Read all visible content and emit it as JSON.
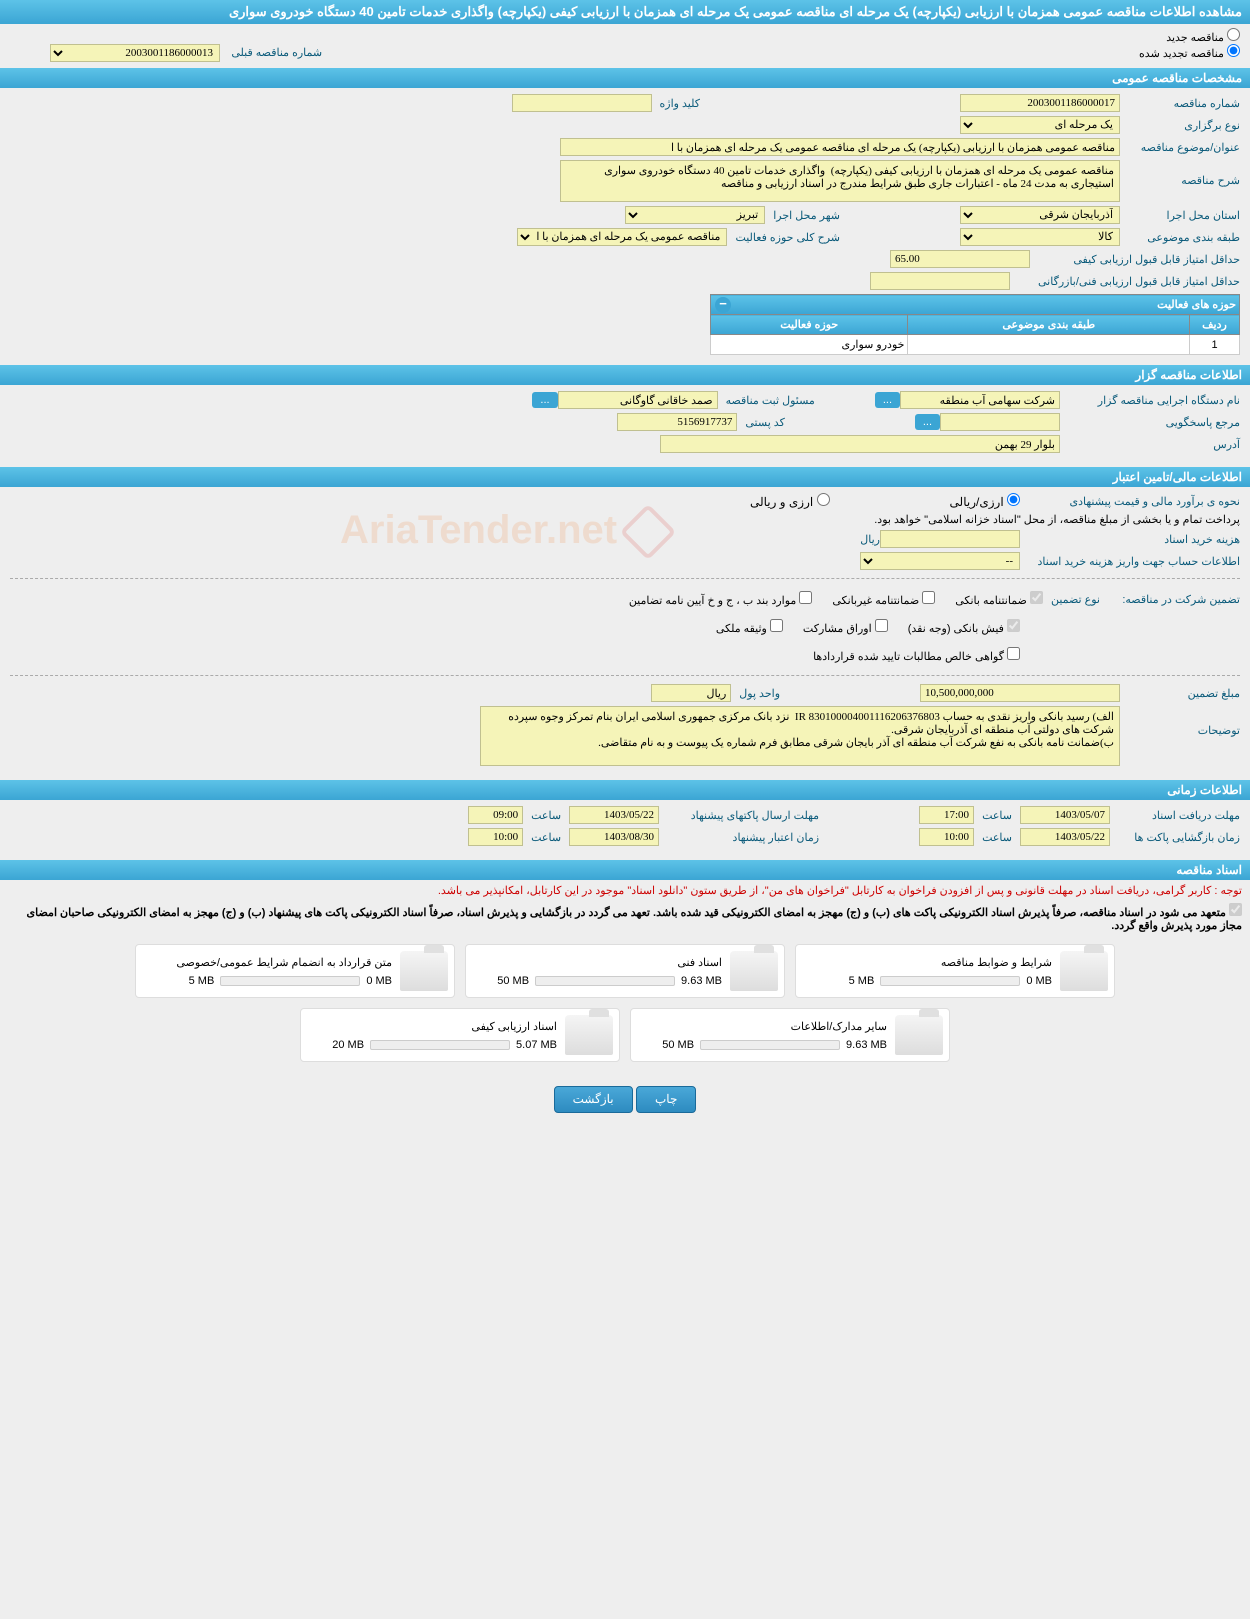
{
  "header": {
    "title": "مشاهده اطلاعات مناقصه عمومی همزمان با ارزیابی (یکپارچه) یک مرحله ای مناقصه عمومی یک مرحله ای همزمان با ارزیابی کیفی (یکپارچه) واگذاری خدمات تامین 40 دستگاه خودروی سواری"
  },
  "top_radio": {
    "new": "مناقصه جدید",
    "renew": "مناقصه تجدید شده",
    "prev_no_label": "شماره مناقصه قبلی",
    "prev_no": "2003001186000013"
  },
  "sections": {
    "general": "مشخصات مناقصه عمومی",
    "holder": "اطلاعات مناقصه گزار",
    "finance": "اطلاعات مالی/تامین اعتبار",
    "time": "اطلاعات زمانی",
    "docs": "اسناد مناقصه"
  },
  "general": {
    "tender_no_label": "شماره مناقصه",
    "tender_no": "2003001186000017",
    "keyword_label": "کلید واژه",
    "keyword": "",
    "type_label": "نوع برگزاری",
    "type": "یک مرحله ای",
    "title_label": "عنوان/موضوع مناقصه",
    "title": "مناقصه عمومی همزمان با ارزیابی (یکپارچه) یک مرحله ای مناقصه عمومی یک مرحله ای همزمان با ا",
    "desc_label": "شرح مناقصه",
    "desc": "مناقصه عمومی یک مرحله ای همزمان با ارزیابی کیفی (یکپارچه)  واگذاری خدمات تامین 40 دستگاه خودروی سواری استیجاری به مدت 24 ماه - اعتبارات جاری طبق شرایط مندرج در اسناد ارزیابی و مناقصه",
    "province_label": "استان محل اجرا",
    "province": "آذربایجان شرقی",
    "city_label": "شهر محل اجرا",
    "city": "تبریز",
    "subject_cat_label": "طبقه بندی موضوعی",
    "subject_cat": "کالا",
    "scope_desc_label": "شرح کلی حوزه فعالیت",
    "scope_desc": "مناقصه عمومی یک مرحله ای همزمان با ارزیابی",
    "min_qual_label": "حداقل امتیاز قابل قبول ارزیابی کیفی",
    "min_qual": "65.00",
    "min_tech_label": "حداقل امتیاز قابل قبول ارزیابی فنی/بازرگانی",
    "min_tech": ""
  },
  "activity_table": {
    "header": "حوزه های فعالیت",
    "col_row": "ردیف",
    "col_cat": "طبقه بندی موضوعی",
    "col_scope": "حوزه فعالیت",
    "rows": [
      {
        "n": "1",
        "cat": "",
        "scope": "خودرو سواری"
      }
    ]
  },
  "holder": {
    "org_label": "نام دستگاه اجرایی مناقصه گزار",
    "org": "شرکت سهامی آب منطقه",
    "resp_btn": "...",
    "reg_person_label": "مسئول ثبت مناقصه",
    "reg_person": "صمد خاقانی گاوگانی",
    "reg_btn": "...",
    "contact_label": "مرجع پاسخگویی",
    "contact": "",
    "contact_btn": "...",
    "postal_label": "کد پستی",
    "postal": "5156917737",
    "address_label": "آدرس",
    "address": "بلوار 29 بهمن"
  },
  "finance": {
    "est_method_label": "نحوه ی برآورد مالی و قیمت پیشنهادی",
    "opt_rial": "ارزی/ریالی",
    "opt_both": "ارزی و ریالی",
    "payment_note": "پرداخت تمام و یا بخشی از مبلغ مناقصه، از محل \"اسناد خزانه اسلامی\" خواهد بود.",
    "doc_cost_label": "هزینه خرید اسناد",
    "doc_cost": "",
    "doc_cost_unit": "ریال",
    "account_label": "اطلاعات حساب جهت واریز هزینه خرید اسناد",
    "account": "--",
    "guarantee_label": "تضمین شرکت در مناقصه:",
    "guarantee_type_label": "نوع تضمین",
    "chk_bank": "ضمانتنامه بانکی",
    "chk_nonbank": "ضمانتنامه غیربانکی",
    "chk_items": "موارد بند ب ، ج و خ آیین نامه تضامین",
    "chk_receipt": "فیش بانکی (وجه نقد)",
    "chk_bonds": "اوراق مشارکت",
    "chk_property": "وثیقه ملکی",
    "chk_net": "گواهی خالص مطالبات تایید شده قراردادها",
    "amount_label": "مبلغ تضمین",
    "amount": "10,500,000,000",
    "unit_label": "واحد پول",
    "unit": "ریال",
    "notes_label": "توضیحات",
    "notes": "الف) رسید بانکی واریز نقدی به حساب IR 830100004001116206376803  نزد بانک مرکزی جمهوری اسلامی ایران بنام تمرکز وجوه سپرده شرکت های دولتی آب منطقه ای آذربایجان شرقی.\nب)ضمانت نامه بانکی به نفع شرکت آب منطقه ای آذر بایجان شرقی مطابق فرم شماره یک پیوست و به نام متقاضی."
  },
  "time": {
    "receive_label": "مهلت دریافت اسناد",
    "receive_date": "1403/05/07",
    "receive_time_label": "ساعت",
    "receive_time": "17:00",
    "send_label": "مهلت ارسال پاکتهای پیشنهاد",
    "send_date": "1403/05/22",
    "send_time_label": "ساعت",
    "send_time": "09:00",
    "open_label": "زمان بازگشایی پاکت ها",
    "open_date": "1403/05/22",
    "open_time_label": "ساعت",
    "open_time": "10:00",
    "valid_label": "زمان اعتبار پیشنهاد",
    "valid_date": "1403/08/30",
    "valid_time_label": "ساعت",
    "valid_time": "10:00"
  },
  "docs": {
    "note1": "توجه : کاربر گرامی، دریافت اسناد در مهلت قانونی و پس از افزودن فراخوان به کارتابل \"فراخوان های من\"، از طریق ستون \"دانلود اسناد\" موجود در این کارتابل، امکانپذیر می باشد.",
    "note2": "متعهد می شود در اسناد مناقصه، صرفاً پذیرش اسناد الکترونیکی پاکت های (ب) و (ج) مهجز به امضای الکترونیکی قید شده باشد. تعهد می گردد در بازگشایی و پذیرش اسناد، صرفاً اسناد الکترونیکی پاکت های پیشنهاد (ب) و (ج) مهجز به امضای الکترونیکی صاحبان امضای مجاز مورد پذیرش واقع گردد.",
    "cards": [
      {
        "title": "شرایط و ضوابط مناقصه",
        "used": "0 MB",
        "total": "5 MB",
        "pct": 0
      },
      {
        "title": "اسناد فنی",
        "used": "9.63 MB",
        "total": "50 MB",
        "pct": 19
      },
      {
        "title": "متن قرارداد به انضمام شرایط عمومی/خصوصی",
        "used": "0 MB",
        "total": "5 MB",
        "pct": 0
      },
      {
        "title": "سایر مدارک/اطلاعات",
        "used": "9.63 MB",
        "total": "50 MB",
        "pct": 19
      },
      {
        "title": "اسناد ارزیابی کیفی",
        "used": "5.07 MB",
        "total": "20 MB",
        "pct": 25
      }
    ]
  },
  "buttons": {
    "print": "چاپ",
    "back": "بازگشت"
  },
  "watermark": "AriaTender.net"
}
